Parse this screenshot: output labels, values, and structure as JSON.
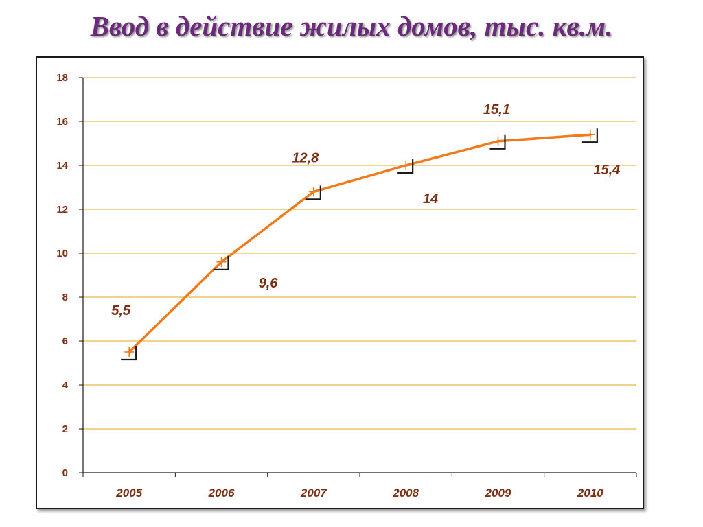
{
  "title": "Ввод в действие жилых домов, тыс. кв.м.",
  "colors": {
    "title": "#6b2a7a",
    "line": "#f07a1c",
    "grid": "#e8b84a",
    "label": "#7b2f14",
    "axis": "#1a1a1a"
  },
  "chart_data": {
    "type": "line",
    "title": "Ввод в действие жилых домов, тыс. кв.м.",
    "xlabel": "",
    "ylabel": "",
    "categories": [
      "2005",
      "2006",
      "2007",
      "2008",
      "2009",
      "2010"
    ],
    "series": [
      {
        "values": [
          5.5,
          9.6,
          12.8,
          14,
          15.1,
          15.4
        ],
        "data_labels": [
          "5,5",
          "9,6",
          "12,8",
          "14",
          "15,1",
          "15,4"
        ]
      }
    ],
    "ylim": [
      0,
      18
    ],
    "yticks": [
      0,
      2,
      4,
      6,
      8,
      10,
      12,
      14,
      16,
      18
    ],
    "grid": true,
    "legend": "none",
    "marker": "plus"
  }
}
